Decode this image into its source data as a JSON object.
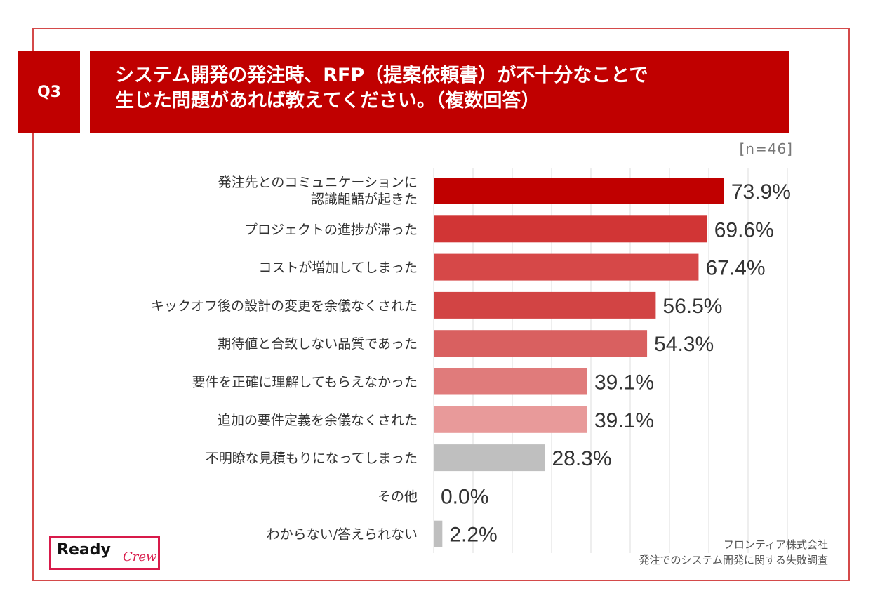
{
  "header": {
    "q_label": "Q3",
    "title_line1": "システム開発の発注時、RFP（提案依頼書）が不十分なことで",
    "title_line2": "生じた問題があれば教えてください。（複数回答）"
  },
  "sample_size": "[n=46]",
  "footer": {
    "company": "フロンティア株式会社",
    "survey": "発注でのシステム開発に関する失敗調査"
  },
  "logo": {
    "main": "Ready",
    "sub": "Crew"
  },
  "colors": {
    "header_bg": "#c00000",
    "bars": [
      "#c00000",
      "#d13535",
      "#d64848",
      "#d24444",
      "#d96060",
      "#e07b7b",
      "#e89a9a",
      "#bfbfbf",
      "#bfbfbf",
      "#bfbfbf"
    ],
    "grid": "#dddddd"
  },
  "chart_data": {
    "type": "bar",
    "orientation": "horizontal",
    "categories": [
      [
        "発注先とのコミュニケーションに",
        "認識齟齬が起きた"
      ],
      [
        "プロジェクトの進捗が滞った"
      ],
      [
        "コストが増加してしまった"
      ],
      [
        "キックオフ後の設計の変更を余儀なくされた"
      ],
      [
        "期待値と合致しない品質であった"
      ],
      [
        "要件を正確に理解してもらえなかった"
      ],
      [
        "追加の要件定義を余儀なくされた"
      ],
      [
        "不明瞭な見積もりになってしまった"
      ],
      [
        "その他"
      ],
      [
        "わからない/答えられない"
      ]
    ],
    "values": [
      73.9,
      69.6,
      67.4,
      56.5,
      54.3,
      39.1,
      39.1,
      28.3,
      0.0,
      2.2
    ],
    "value_labels": [
      "73.9%",
      "69.6%",
      "67.4%",
      "56.5%",
      "54.3%",
      "39.1%",
      "39.1%",
      "28.3%",
      "0.0%",
      "2.2%"
    ],
    "xlim": [
      0,
      100
    ],
    "grid": true,
    "unit": "%"
  }
}
